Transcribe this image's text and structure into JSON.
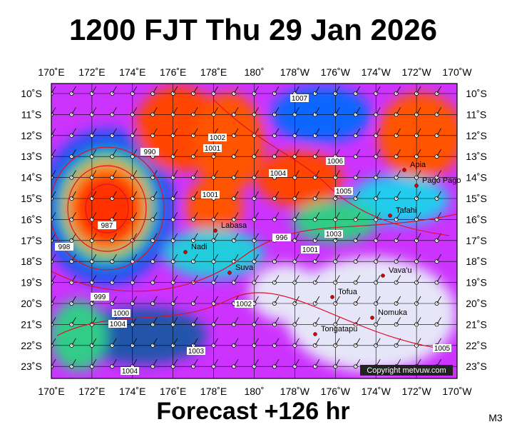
{
  "header": {
    "title": "1200 FJT Thu 29 Jan 2026"
  },
  "longitude_labels": [
    "170˚E",
    "172˚E",
    "174˚E",
    "176˚E",
    "178˚E",
    "180˚",
    "178˚W",
    "176˚W",
    "174˚W",
    "172˚W",
    "170˚W"
  ],
  "latitude_labels": [
    "10˚S",
    "11˚S",
    "12˚S",
    "13˚S",
    "14˚S",
    "15˚S",
    "16˚S",
    "17˚S",
    "18˚S",
    "19˚S",
    "20˚S",
    "21˚S",
    "22˚S",
    "23˚S"
  ],
  "places": [
    {
      "label": "Apia"
    },
    {
      "label": "Pago Pago"
    },
    {
      "label": "Tafahi"
    },
    {
      "label": "Labasa"
    },
    {
      "label": "Nadi"
    },
    {
      "label": "Suva"
    },
    {
      "label": "Vava'u"
    },
    {
      "label": "Tofua"
    },
    {
      "label": "Nomuka"
    },
    {
      "label": "Tongatapu"
    }
  ],
  "isobar_labels": [
    "1007",
    "1002",
    "1001",
    "990",
    "1004",
    "1006",
    "1005",
    "1001",
    "1003",
    "996",
    "1001",
    "998",
    "999",
    "1000",
    "1002",
    "1003",
    "1004",
    "987",
    "1005",
    "1004"
  ],
  "copyright": "Copyright metvuw.com",
  "footer": {
    "forecast": "Forecast +126 hr",
    "model": "M3"
  }
}
